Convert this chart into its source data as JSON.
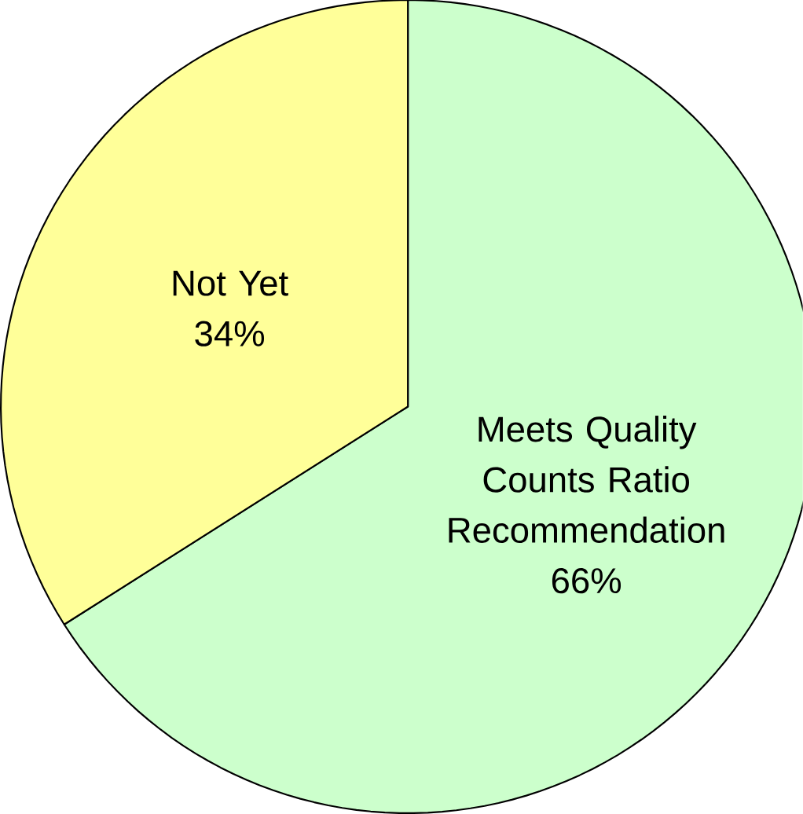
{
  "chart_data": {
    "type": "pie",
    "categories": [
      "Meets Quality Counts Ratio Recommendation",
      "Not Yet"
    ],
    "values": [
      66,
      34
    ],
    "colors": [
      "#ccffcc",
      "#ffff99"
    ],
    "value_labels": [
      "66%",
      "34%"
    ]
  }
}
